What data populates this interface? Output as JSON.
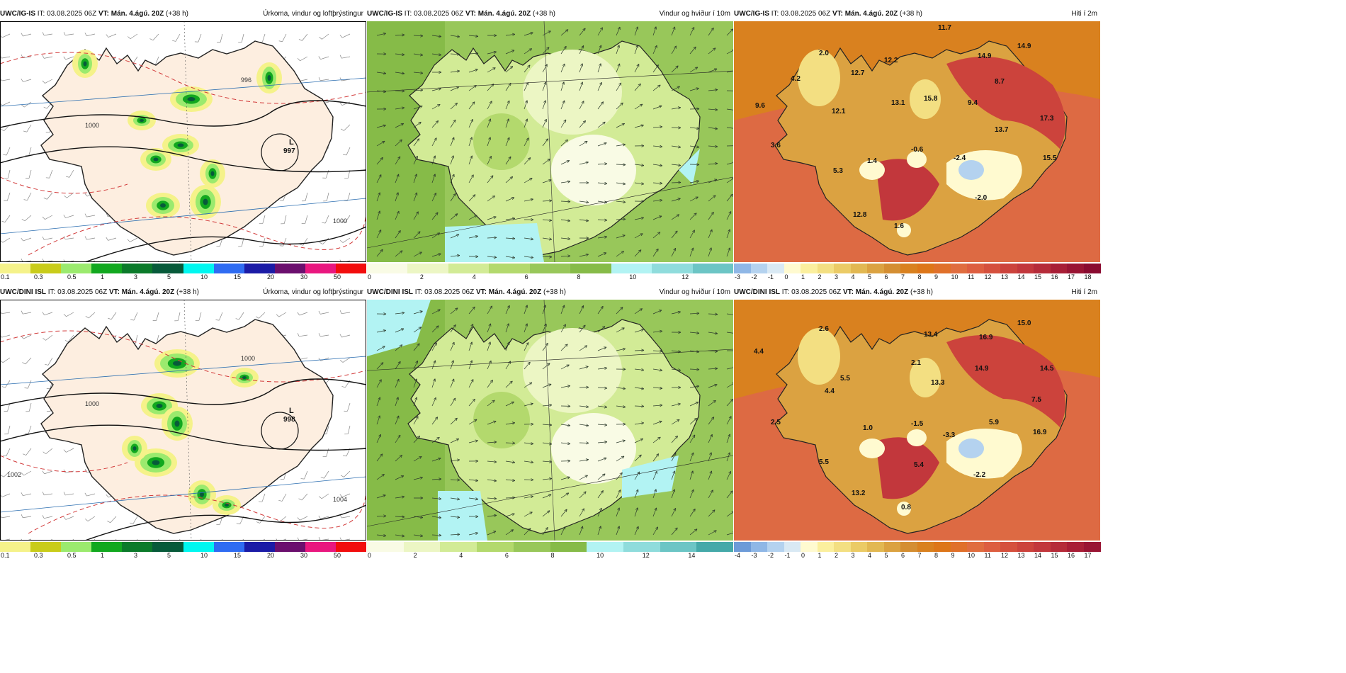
{
  "rows": [
    {
      "model": "UWC/IG-IS",
      "run_prefix": "IT: 03.08.2025 06Z",
      "valid_prefix": "VT:",
      "valid_time": "Mán. 4.ágú. 20Z",
      "lead": "(+38 h)",
      "precip": {
        "title": "Úrkoma, vindur og loftþrýstingur",
        "low_letter": "L",
        "low_value": "997",
        "isobars": [
          "996",
          "1000",
          "1000"
        ],
        "scale": [
          "0.1",
          "0.3",
          "0.5",
          "1",
          "3",
          "5",
          "10",
          "15",
          "20",
          "30",
          "50"
        ],
        "colors": [
          "#f5f28a",
          "#c9cc1a",
          "#9bea6e",
          "#12a81f",
          "#0b7a2a",
          "#075a3a",
          "#00f7f0",
          "#2f6cf2",
          "#1b1ba6",
          "#6b0f6e",
          "#e9177f",
          "#f20d0d"
        ]
      },
      "wind": {
        "title": "Vindur og hviður í 10m",
        "scale": [
          "0",
          "2",
          "4",
          "6",
          "8",
          "10",
          "12"
        ],
        "colors": [
          "#f9fbe5",
          "#ecf6c4",
          "#d2eb96",
          "#b3d96d",
          "#98c75a",
          "#86bb48",
          "#b2f3f3",
          "#8fdcdc",
          "#6cc5c5"
        ]
      },
      "temp": {
        "title": "Hiti í 2m",
        "scale": [
          "-3",
          "-2",
          "-1",
          "0",
          "1",
          "2",
          "3",
          "4",
          "5",
          "6",
          "7",
          "8",
          "9",
          "10",
          "11",
          "12",
          "13",
          "14",
          "15",
          "16",
          "17",
          "18"
        ],
        "colors": [
          "#8fb7e6",
          "#b4d2ef",
          "#d9e9f4",
          "#fffad0",
          "#fbef9e",
          "#f3df82",
          "#ebcb66",
          "#e2b852",
          "#dba241",
          "#d48e32",
          "#d9811f",
          "#dd7619",
          "#e0702a",
          "#e06d3f",
          "#dd5e40",
          "#d5503d",
          "#cc433c",
          "#c2373c",
          "#b52b39",
          "#a81e36",
          "#991433",
          "#8a0b30"
        ],
        "labels": [
          "11.7",
          "2.0",
          "14.9",
          "14.9",
          "4.2",
          "12.7",
          "12.2",
          "8.7",
          "9.6",
          "12.1",
          "13.1",
          "15.8",
          "9.4",
          "17.3",
          "13.7",
          "3.6",
          "1.4",
          "-0.6",
          "-2.4",
          "15.5",
          "5.3",
          "-2.0",
          "12.8",
          "1.6"
        ]
      }
    },
    {
      "model": "UWC/DINI ISL",
      "run_prefix": "IT: 03.08.2025 06Z",
      "valid_prefix": "VT:",
      "valid_time": "Mán. 4.ágú. 20Z",
      "lead": "(+38 h)",
      "precip": {
        "title": "Úrkoma, vindur og loftþrýstingur",
        "low_letter": "L",
        "low_value": "998",
        "isobars": [
          "1000",
          "1000",
          "1004",
          "1002"
        ],
        "scale": [
          "0.1",
          "0.3",
          "0.5",
          "1",
          "3",
          "5",
          "10",
          "15",
          "20",
          "30",
          "50"
        ],
        "colors": [
          "#f5f28a",
          "#c9cc1a",
          "#9bea6e",
          "#12a81f",
          "#0b7a2a",
          "#075a3a",
          "#00f7f0",
          "#2f6cf2",
          "#1b1ba6",
          "#6b0f6e",
          "#e9177f",
          "#f20d0d"
        ]
      },
      "wind": {
        "title": "Vindur og hviður í 10m",
        "scale": [
          "0",
          "2",
          "4",
          "6",
          "8",
          "10",
          "12",
          "14"
        ],
        "colors": [
          "#f9fbe5",
          "#ecf6c4",
          "#d2eb96",
          "#b3d96d",
          "#98c75a",
          "#86bb48",
          "#b2f3f3",
          "#8fdcdc",
          "#6cc5c5",
          "#45a9a9"
        ]
      },
      "temp": {
        "title": "Hiti í 2m",
        "scale": [
          "-4",
          "-3",
          "-2",
          "-1",
          "0",
          "1",
          "2",
          "3",
          "4",
          "5",
          "6",
          "7",
          "8",
          "9",
          "10",
          "11",
          "12",
          "13",
          "14",
          "15",
          "16",
          "17"
        ],
        "colors": [
          "#6d9bd8",
          "#8fb7e6",
          "#b4d2ef",
          "#d9e9f4",
          "#fffad0",
          "#fbef9e",
          "#f3df82",
          "#ebcb66",
          "#e2b852",
          "#dba241",
          "#d48e32",
          "#d9811f",
          "#dd7619",
          "#e0702a",
          "#e06d3f",
          "#dd5e40",
          "#d5503d",
          "#cc433c",
          "#c2373c",
          "#b52b39",
          "#a81e36",
          "#991433"
        ],
        "labels": [
          "2.6",
          "15.0",
          "13.4",
          "16.9",
          "4.4",
          "2.1",
          "14.9",
          "5.5",
          "14.5",
          "13.3",
          "4.4",
          "7.5",
          "2.5",
          "1.0",
          "-1.5",
          "5.9",
          "-3.3",
          "16.9",
          "5.5",
          "5.4",
          "-2.2",
          "13.2",
          "0.8"
        ]
      }
    }
  ]
}
